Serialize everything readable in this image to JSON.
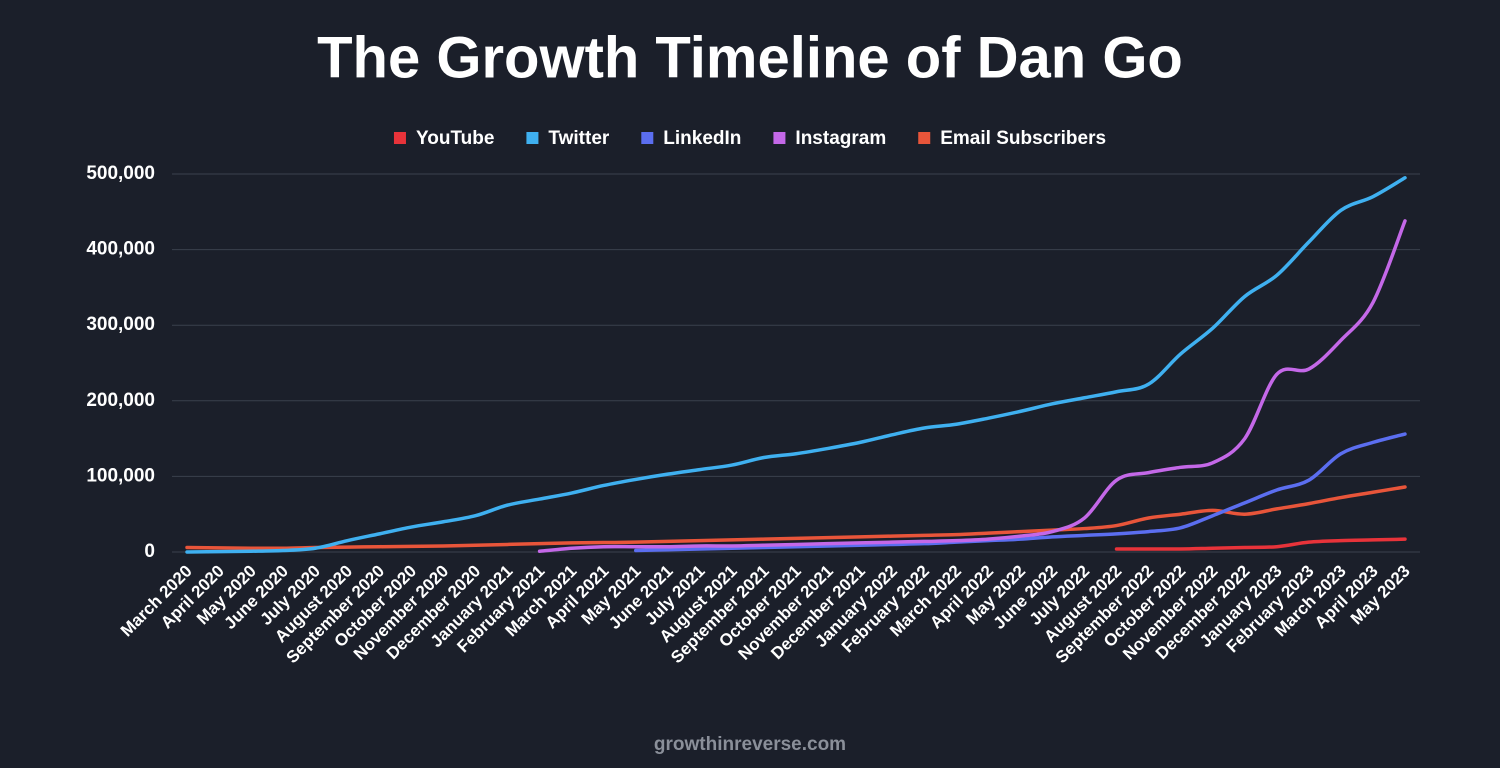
{
  "chart_data": {
    "type": "line",
    "title": "The Growth Timeline of Dan Go",
    "footer": "growthinreverse.com",
    "categories": [
      "March 2020",
      "April 2020",
      "May 2020",
      "June 2020",
      "July 2020",
      "August 2020",
      "September 2020",
      "October 2020",
      "November 2020",
      "December 2020",
      "January 2021",
      "February 2021",
      "March 2021",
      "April 2021",
      "May 2021",
      "June 2021",
      "July 2021",
      "August 2021",
      "September 2021",
      "October 2021",
      "November 2021",
      "December 2021",
      "January 2022",
      "February 2022",
      "March 2022",
      "April 2022",
      "May 2022",
      "June 2022",
      "July 2022",
      "August 2022",
      "September 2022",
      "October 2022",
      "November 2022",
      "December 2022",
      "January 2023",
      "February 2023",
      "March 2023",
      "April 2023",
      "May 2023"
    ],
    "series": [
      {
        "name": "YouTube",
        "color": "#e8333a",
        "values": [
          null,
          null,
          null,
          null,
          null,
          null,
          null,
          null,
          null,
          null,
          null,
          null,
          null,
          null,
          null,
          null,
          null,
          null,
          null,
          null,
          null,
          null,
          null,
          null,
          null,
          null,
          null,
          null,
          null,
          4000,
          4000,
          4000,
          5000,
          6000,
          7000,
          13000,
          15000,
          16000,
          17000
        ]
      },
      {
        "name": "Twitter",
        "color": "#3fb0f0",
        "values": [
          0,
          500,
          1000,
          2000,
          5000,
          15000,
          24000,
          33000,
          40000,
          48000,
          62000,
          70000,
          78000,
          88000,
          96000,
          103000,
          109000,
          115000,
          125000,
          130000,
          137000,
          145000,
          155000,
          164000,
          169000,
          177000,
          186000,
          196000,
          204000,
          212000,
          222000,
          262000,
          296000,
          338000,
          366000,
          410000,
          452000,
          470000,
          495000
        ]
      },
      {
        "name": "LinkedIn",
        "color": "#5b6ef0",
        "values": [
          null,
          null,
          null,
          null,
          null,
          null,
          null,
          null,
          null,
          null,
          null,
          null,
          null,
          null,
          2000,
          3000,
          4000,
          5000,
          6000,
          7000,
          8000,
          9000,
          10000,
          11000,
          13000,
          15000,
          17000,
          20000,
          22000,
          24000,
          27000,
          32000,
          48000,
          65000,
          82000,
          95000,
          130000,
          145000,
          156000
        ]
      },
      {
        "name": "Instagram",
        "color": "#c468e8",
        "values": [
          null,
          null,
          null,
          null,
          null,
          null,
          null,
          null,
          null,
          null,
          null,
          1000,
          5000,
          7000,
          7000,
          7000,
          8000,
          8000,
          9000,
          10000,
          11000,
          12000,
          13000,
          14000,
          15000,
          17000,
          21000,
          27000,
          45000,
          95000,
          105000,
          112000,
          118000,
          150000,
          235000,
          242000,
          280000,
          330000,
          438000
        ]
      },
      {
        "name": "Email Subscribers",
        "color": "#e8553a",
        "values": [
          6000,
          5500,
          5000,
          5000,
          6000,
          6500,
          7000,
          7500,
          8000,
          9000,
          10000,
          11000,
          12000,
          12500,
          13000,
          14000,
          15000,
          16000,
          17000,
          18000,
          19000,
          20000,
          21000,
          22000,
          23000,
          25000,
          27000,
          29000,
          31000,
          35000,
          45000,
          50000,
          55000,
          50000,
          57000,
          64000,
          72000,
          79000,
          86000
        ]
      }
    ],
    "ylim": [
      0,
      500000
    ],
    "yticks": [
      {
        "value": 0,
        "label": "0"
      },
      {
        "value": 100000,
        "label": "100,000"
      },
      {
        "value": 200000,
        "label": "200,000"
      },
      {
        "value": 300000,
        "label": "300,000"
      },
      {
        "value": 400000,
        "label": "400,000"
      },
      {
        "value": 500000,
        "label": "500,000"
      }
    ],
    "grid": true,
    "legend": "top"
  }
}
